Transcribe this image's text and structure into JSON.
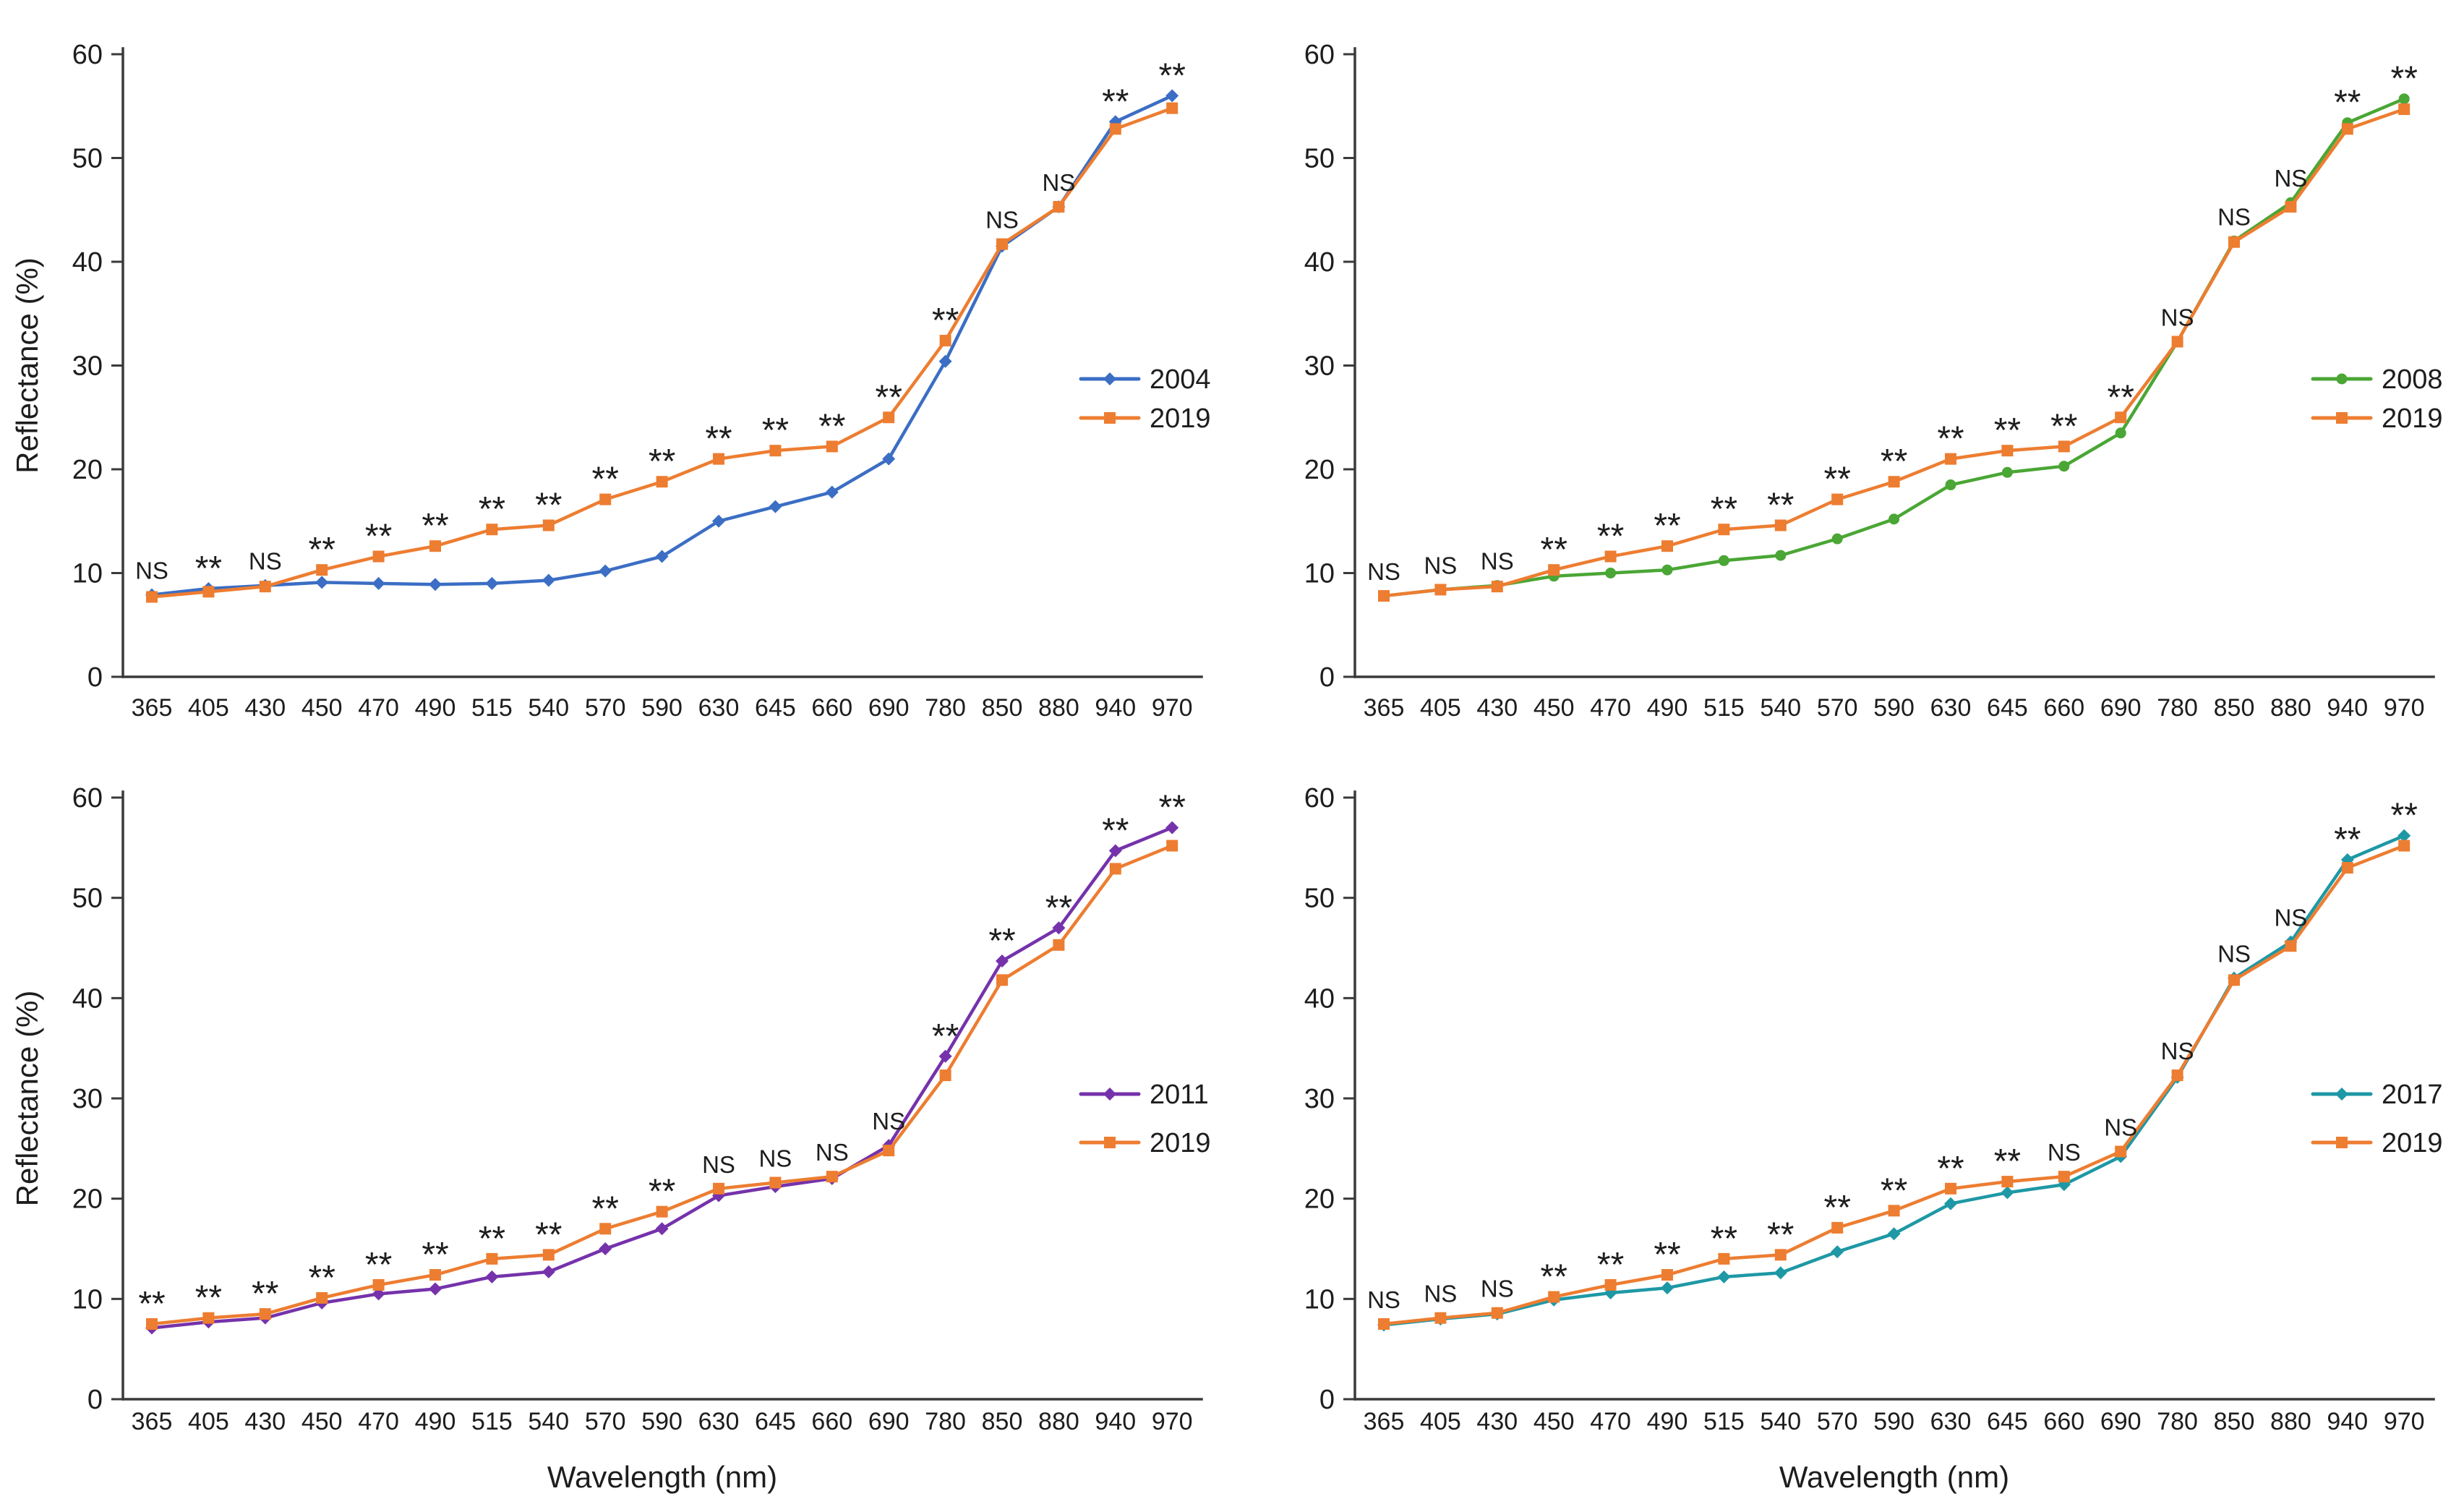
{
  "figure": {
    "background": "#ffffff",
    "axis_color": "#3a3a3a",
    "text_color": "#1d1d1d",
    "ylabel": "Reflectance (%)",
    "xlabel": "Wavelength (nm)",
    "significance_labels": {
      "not_significant": "NS",
      "significant": "**"
    }
  },
  "chart_data": [
    {
      "id": "panel-top-left",
      "type": "line",
      "categories": [
        "365",
        "405",
        "430",
        "450",
        "470",
        "490",
        "515",
        "540",
        "570",
        "590",
        "630",
        "645",
        "660",
        "690",
        "780",
        "850",
        "880",
        "940",
        "970"
      ],
      "series": [
        {
          "name": "2004",
          "color": "#3B6EC4",
          "marker": "diamond",
          "values": [
            7.9,
            8.5,
            8.8,
            9.1,
            9.0,
            8.9,
            9.0,
            9.3,
            10.2,
            11.6,
            15.0,
            16.4,
            17.8,
            21.0,
            30.4,
            41.5,
            45.3,
            53.5,
            56.0
          ]
        },
        {
          "name": "2019",
          "color": "#ED7D31",
          "marker": "square",
          "values": [
            7.7,
            8.2,
            8.7,
            10.3,
            11.6,
            12.6,
            14.2,
            14.6,
            17.1,
            18.8,
            21.0,
            21.8,
            22.2,
            25.0,
            32.4,
            41.7,
            45.3,
            52.8,
            54.8
          ]
        }
      ],
      "significance": [
        "NS",
        "**",
        "NS",
        "**",
        "**",
        "**",
        "**",
        "**",
        "**",
        "**",
        "**",
        "**",
        "**",
        "**",
        "**",
        "NS",
        "NS",
        "**",
        "**"
      ],
      "ylabel": "Reflectance (%)",
      "xlabel": "",
      "ylim": [
        0,
        60
      ],
      "yticks": [
        0,
        10,
        20,
        30,
        40,
        50,
        60
      ],
      "grid": false,
      "legend_position": "middle-right"
    },
    {
      "id": "panel-top-right",
      "type": "line",
      "categories": [
        "365",
        "405",
        "430",
        "450",
        "470",
        "490",
        "515",
        "540",
        "570",
        "590",
        "630",
        "645",
        "660",
        "690",
        "780",
        "850",
        "880",
        "940",
        "970"
      ],
      "series": [
        {
          "name": "2008",
          "color": "#4AA635",
          "marker": "circle",
          "values": [
            7.8,
            8.4,
            8.8,
            9.7,
            10.0,
            10.3,
            11.2,
            11.7,
            13.3,
            15.2,
            18.5,
            19.7,
            20.3,
            23.5,
            32.3,
            42.0,
            45.7,
            53.4,
            55.7
          ]
        },
        {
          "name": "2019",
          "color": "#ED7D31",
          "marker": "square",
          "values": [
            7.8,
            8.4,
            8.7,
            10.3,
            11.6,
            12.6,
            14.2,
            14.6,
            17.1,
            18.8,
            21.0,
            21.8,
            22.2,
            25.0,
            32.3,
            41.9,
            45.3,
            52.8,
            54.7
          ]
        }
      ],
      "significance": [
        "NS",
        "NS",
        "NS",
        "**",
        "**",
        "**",
        "**",
        "**",
        "**",
        "**",
        "**",
        "**",
        "**",
        "**",
        "NS",
        "NS",
        "NS",
        "**",
        "**"
      ],
      "ylabel": "",
      "xlabel": "",
      "ylim": [
        0,
        60
      ],
      "yticks": [
        0,
        10,
        20,
        30,
        40,
        50,
        60
      ],
      "grid": false,
      "legend_position": "middle-right"
    },
    {
      "id": "panel-bottom-left",
      "type": "line",
      "categories": [
        "365",
        "405",
        "430",
        "450",
        "470",
        "490",
        "515",
        "540",
        "570",
        "590",
        "630",
        "645",
        "660",
        "690",
        "780",
        "850",
        "880",
        "940",
        "970"
      ],
      "series": [
        {
          "name": "2011",
          "color": "#7532AB",
          "marker": "diamond",
          "values": [
            7.1,
            7.7,
            8.1,
            9.6,
            10.5,
            11.0,
            12.2,
            12.7,
            15.0,
            17.0,
            20.3,
            21.2,
            22.0,
            25.3,
            34.2,
            43.7,
            47.0,
            54.7,
            57.0
          ]
        },
        {
          "name": "2019",
          "color": "#ED7D31",
          "marker": "square",
          "values": [
            7.5,
            8.1,
            8.5,
            10.1,
            11.4,
            12.4,
            14.0,
            14.4,
            17.0,
            18.7,
            21.0,
            21.6,
            22.2,
            24.8,
            32.3,
            41.8,
            45.3,
            52.9,
            55.2
          ]
        }
      ],
      "significance": [
        "**",
        "**",
        "**",
        "**",
        "**",
        "**",
        "**",
        "**",
        "**",
        "**",
        "NS",
        "NS",
        "NS",
        "NS",
        "**",
        "**",
        "**",
        "**",
        "**"
      ],
      "ylabel": "Reflectance (%)",
      "xlabel": "Wavelength (nm)",
      "ylim": [
        0,
        60
      ],
      "yticks": [
        0,
        10,
        20,
        30,
        40,
        50,
        60
      ],
      "grid": false,
      "legend_position": "middle-right"
    },
    {
      "id": "panel-bottom-right",
      "type": "line",
      "categories": [
        "365",
        "405",
        "430",
        "450",
        "470",
        "490",
        "515",
        "540",
        "570",
        "590",
        "630",
        "645",
        "660",
        "690",
        "780",
        "850",
        "880",
        "940",
        "970"
      ],
      "series": [
        {
          "name": "2017",
          "color": "#1E98A5",
          "marker": "diamond",
          "values": [
            7.4,
            8.0,
            8.5,
            9.9,
            10.6,
            11.1,
            12.2,
            12.6,
            14.7,
            16.5,
            19.5,
            20.6,
            21.4,
            24.2,
            32.1,
            42.0,
            45.6,
            53.8,
            56.2
          ]
        },
        {
          "name": "2019",
          "color": "#ED7D31",
          "marker": "square",
          "values": [
            7.5,
            8.1,
            8.6,
            10.2,
            11.4,
            12.4,
            14.0,
            14.4,
            17.1,
            18.8,
            21.0,
            21.7,
            22.2,
            24.7,
            32.3,
            41.8,
            45.2,
            53.0,
            55.2
          ]
        }
      ],
      "significance": [
        "NS",
        "NS",
        "NS",
        "**",
        "**",
        "**",
        "**",
        "**",
        "**",
        "**",
        "**",
        "**",
        "NS",
        "NS",
        "NS",
        "NS",
        "NS",
        "**",
        "**"
      ],
      "ylabel": "",
      "xlabel": "Wavelength (nm)",
      "ylim": [
        0,
        60
      ],
      "yticks": [
        0,
        10,
        20,
        30,
        40,
        50,
        60
      ],
      "grid": false,
      "legend_position": "middle-right"
    }
  ]
}
